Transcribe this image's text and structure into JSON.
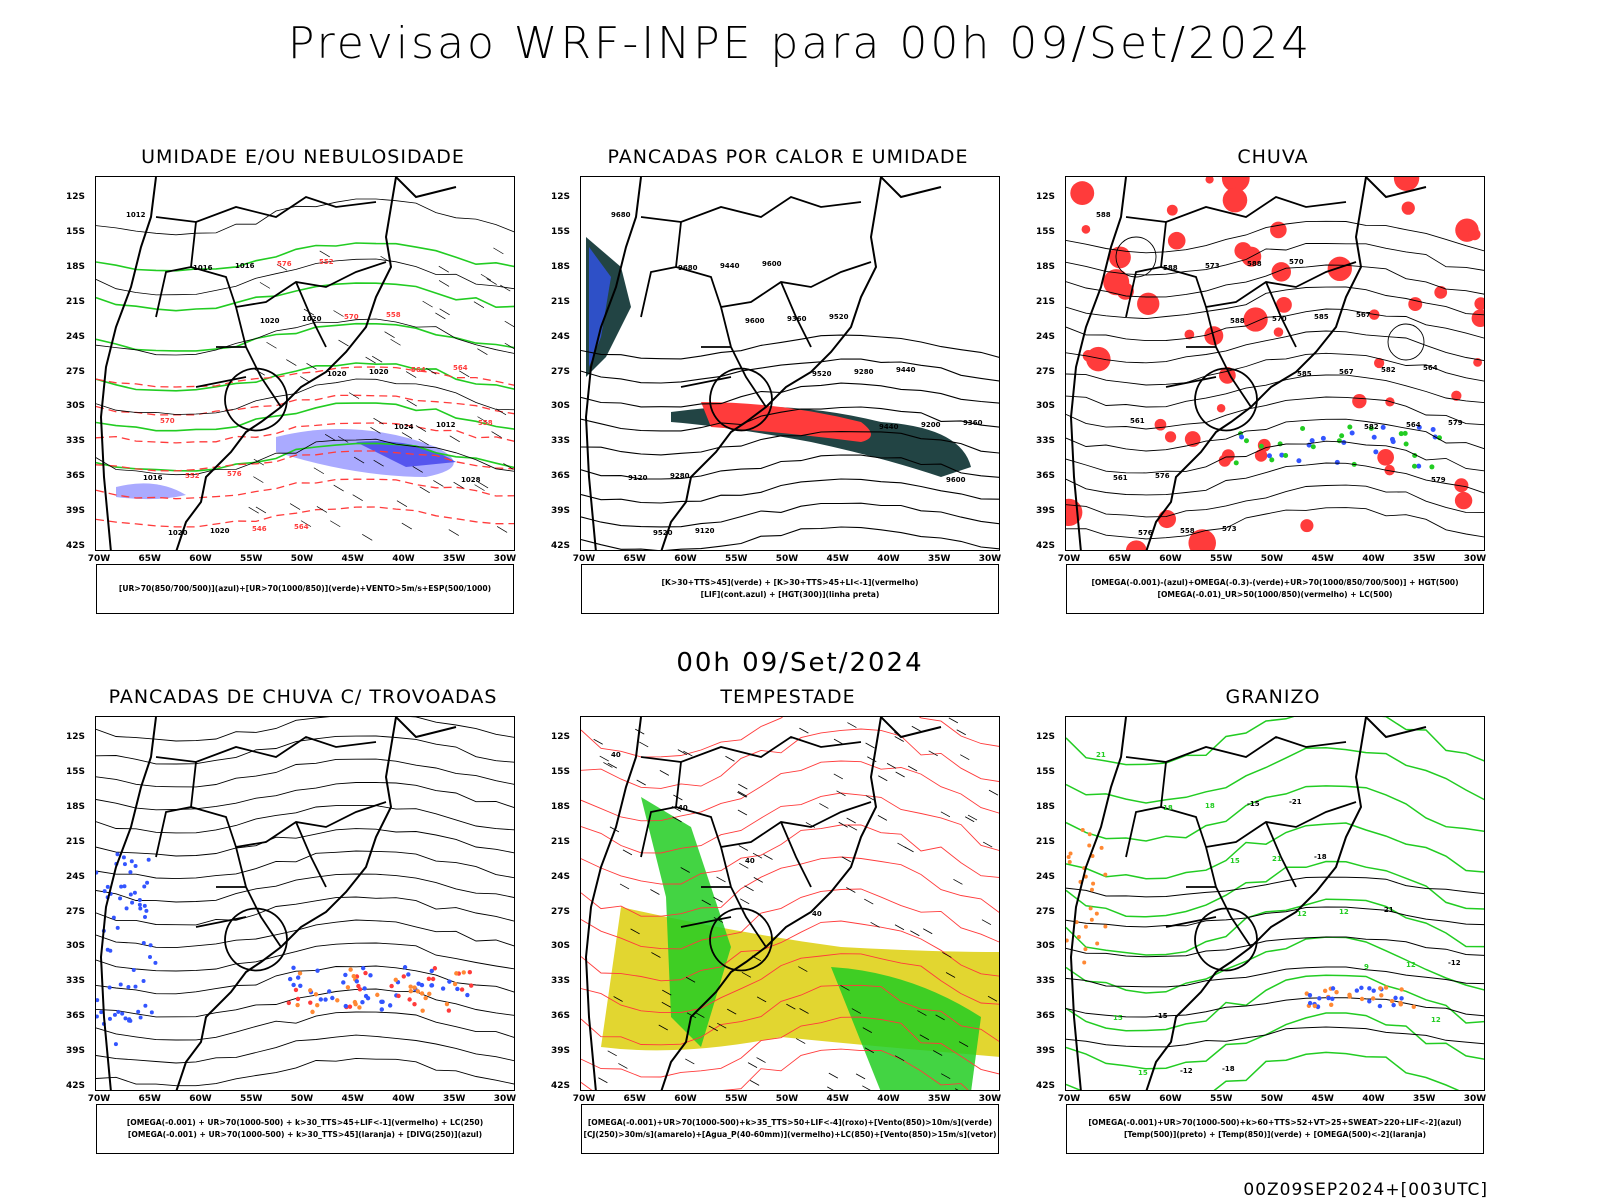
{
  "header": {
    "title": "Previsao WRF-INPE  para 00h 09/Set/2024"
  },
  "mid_title": "00h 09/Set/2024",
  "footer": "00Z09SEP2024+[003UTC]",
  "axes": {
    "lat_labels": [
      "12S",
      "15S",
      "18S",
      "21S",
      "24S",
      "27S",
      "30S",
      "33S",
      "36S",
      "39S",
      "42S"
    ],
    "lon_labels": [
      "70W",
      "65W",
      "60W",
      "55W",
      "50W",
      "45W",
      "40W",
      "35W",
      "30W"
    ]
  },
  "colors": {
    "red": "#ff3b3b",
    "green": "#22cc22",
    "blue": "#3355ff",
    "lavender": "#aaaaff",
    "yellow": "#e2d630",
    "darkteal": "#224444",
    "orange": "#ff8833",
    "black": "#000000"
  },
  "panels": [
    {
      "id": "umidade",
      "title": "UMIDADE E/OU NEBULOSIDADE",
      "legend": [
        "[UR>70(850/700/500)](azul)+[UR>70(1000/850)](verde)+VENTO>5m/s+ESP(500/1000)"
      ],
      "contour_labels": [
        "1012",
        "1016",
        "1020",
        "1020",
        "1024",
        "1028",
        "1020",
        "1016",
        "1020",
        "1020",
        "1012",
        "1016",
        "1020",
        "576",
        "570",
        "564",
        "558",
        "552",
        "546",
        "552",
        "558",
        "564",
        "570",
        "576",
        "564"
      ]
    },
    {
      "id": "pancadas-calor",
      "title": "PANCADAS POR CALOR E UMIDADE",
      "legend": [
        "[K>30+TTS>45](verde) + [K>30+TTS>45+LI<-1](vermelho)",
        "[LIF](cont.azul) + [HGT(300)](linha preta)"
      ],
      "contour_labels": [
        "9680",
        "9680",
        "9600",
        "9520",
        "9440",
        "9600",
        "9520",
        "9440",
        "9360",
        "9280",
        "9200",
        "9120",
        "9120",
        "9600",
        "9520",
        "9440",
        "9360",
        "9280"
      ]
    },
    {
      "id": "chuva",
      "title": "CHUVA",
      "legend": [
        "[OMEGA(-0.001)-(azul)+OMEGA(-0.3)-(verde)+UR>70(1000/850/700/500)] + HGT(500)",
        "[OMEGA(-0.01)_UR>50(1000/850)(vermelho) + LC(500)"
      ],
      "contour_labels": [
        "588",
        "588",
        "588",
        "585",
        "582",
        "579",
        "576",
        "573",
        "570",
        "567",
        "564",
        "561",
        "558",
        "588",
        "585",
        "582",
        "579",
        "576",
        "573",
        "570",
        "567",
        "564",
        "561"
      ]
    },
    {
      "id": "pancadas-trovoadas",
      "title": "PANCADAS DE CHUVA C/ TROVOADAS",
      "legend": [
        "[OMEGA(-0.001) + UR>70(1000-500) + k>30_TTS>45+LIF<-1](vermelho) + LC(250)",
        "[OMEGA(-0.001) + UR>70(1000-500) + k>30_TTS>45](laranja) + [DIVG(250)](azul)"
      ],
      "contour_labels": []
    },
    {
      "id": "tempestade",
      "title": "TEMPESTADE",
      "legend": [
        "[OMEGA(-0.001)+UR>70(1000-500)+k>35_TTS>50+LIF<-4](roxo)+[Vento(850)>10m/s](verde)",
        "[CJ(250)>30m/s](amarelo)+[Agua_P(40-60mm)](vermelho)+LC(850)+[Vento(850)>15m/s](vetor)"
      ],
      "contour_labels": [
        "40",
        "40",
        "40",
        "40"
      ]
    },
    {
      "id": "granizo",
      "title": "GRANIZO",
      "legend": [
        "[OMEGA(-0.001)+UR>70(1000-500)+k>60+TTS>52+VT>25+SWEAT>220+LIF<-2](azul)",
        "[Temp(500)](preto) + [Temp(850)](verde) + [OMEGA(500)<-2](laranja)"
      ],
      "contour_labels": [
        "21",
        "18",
        "15",
        "12",
        "9",
        "12",
        "15",
        "18",
        "21",
        "12",
        "12",
        "15",
        "-12",
        "-15",
        "-18",
        "-21",
        "-12",
        "-15",
        "-18",
        "-21"
      ]
    }
  ]
}
